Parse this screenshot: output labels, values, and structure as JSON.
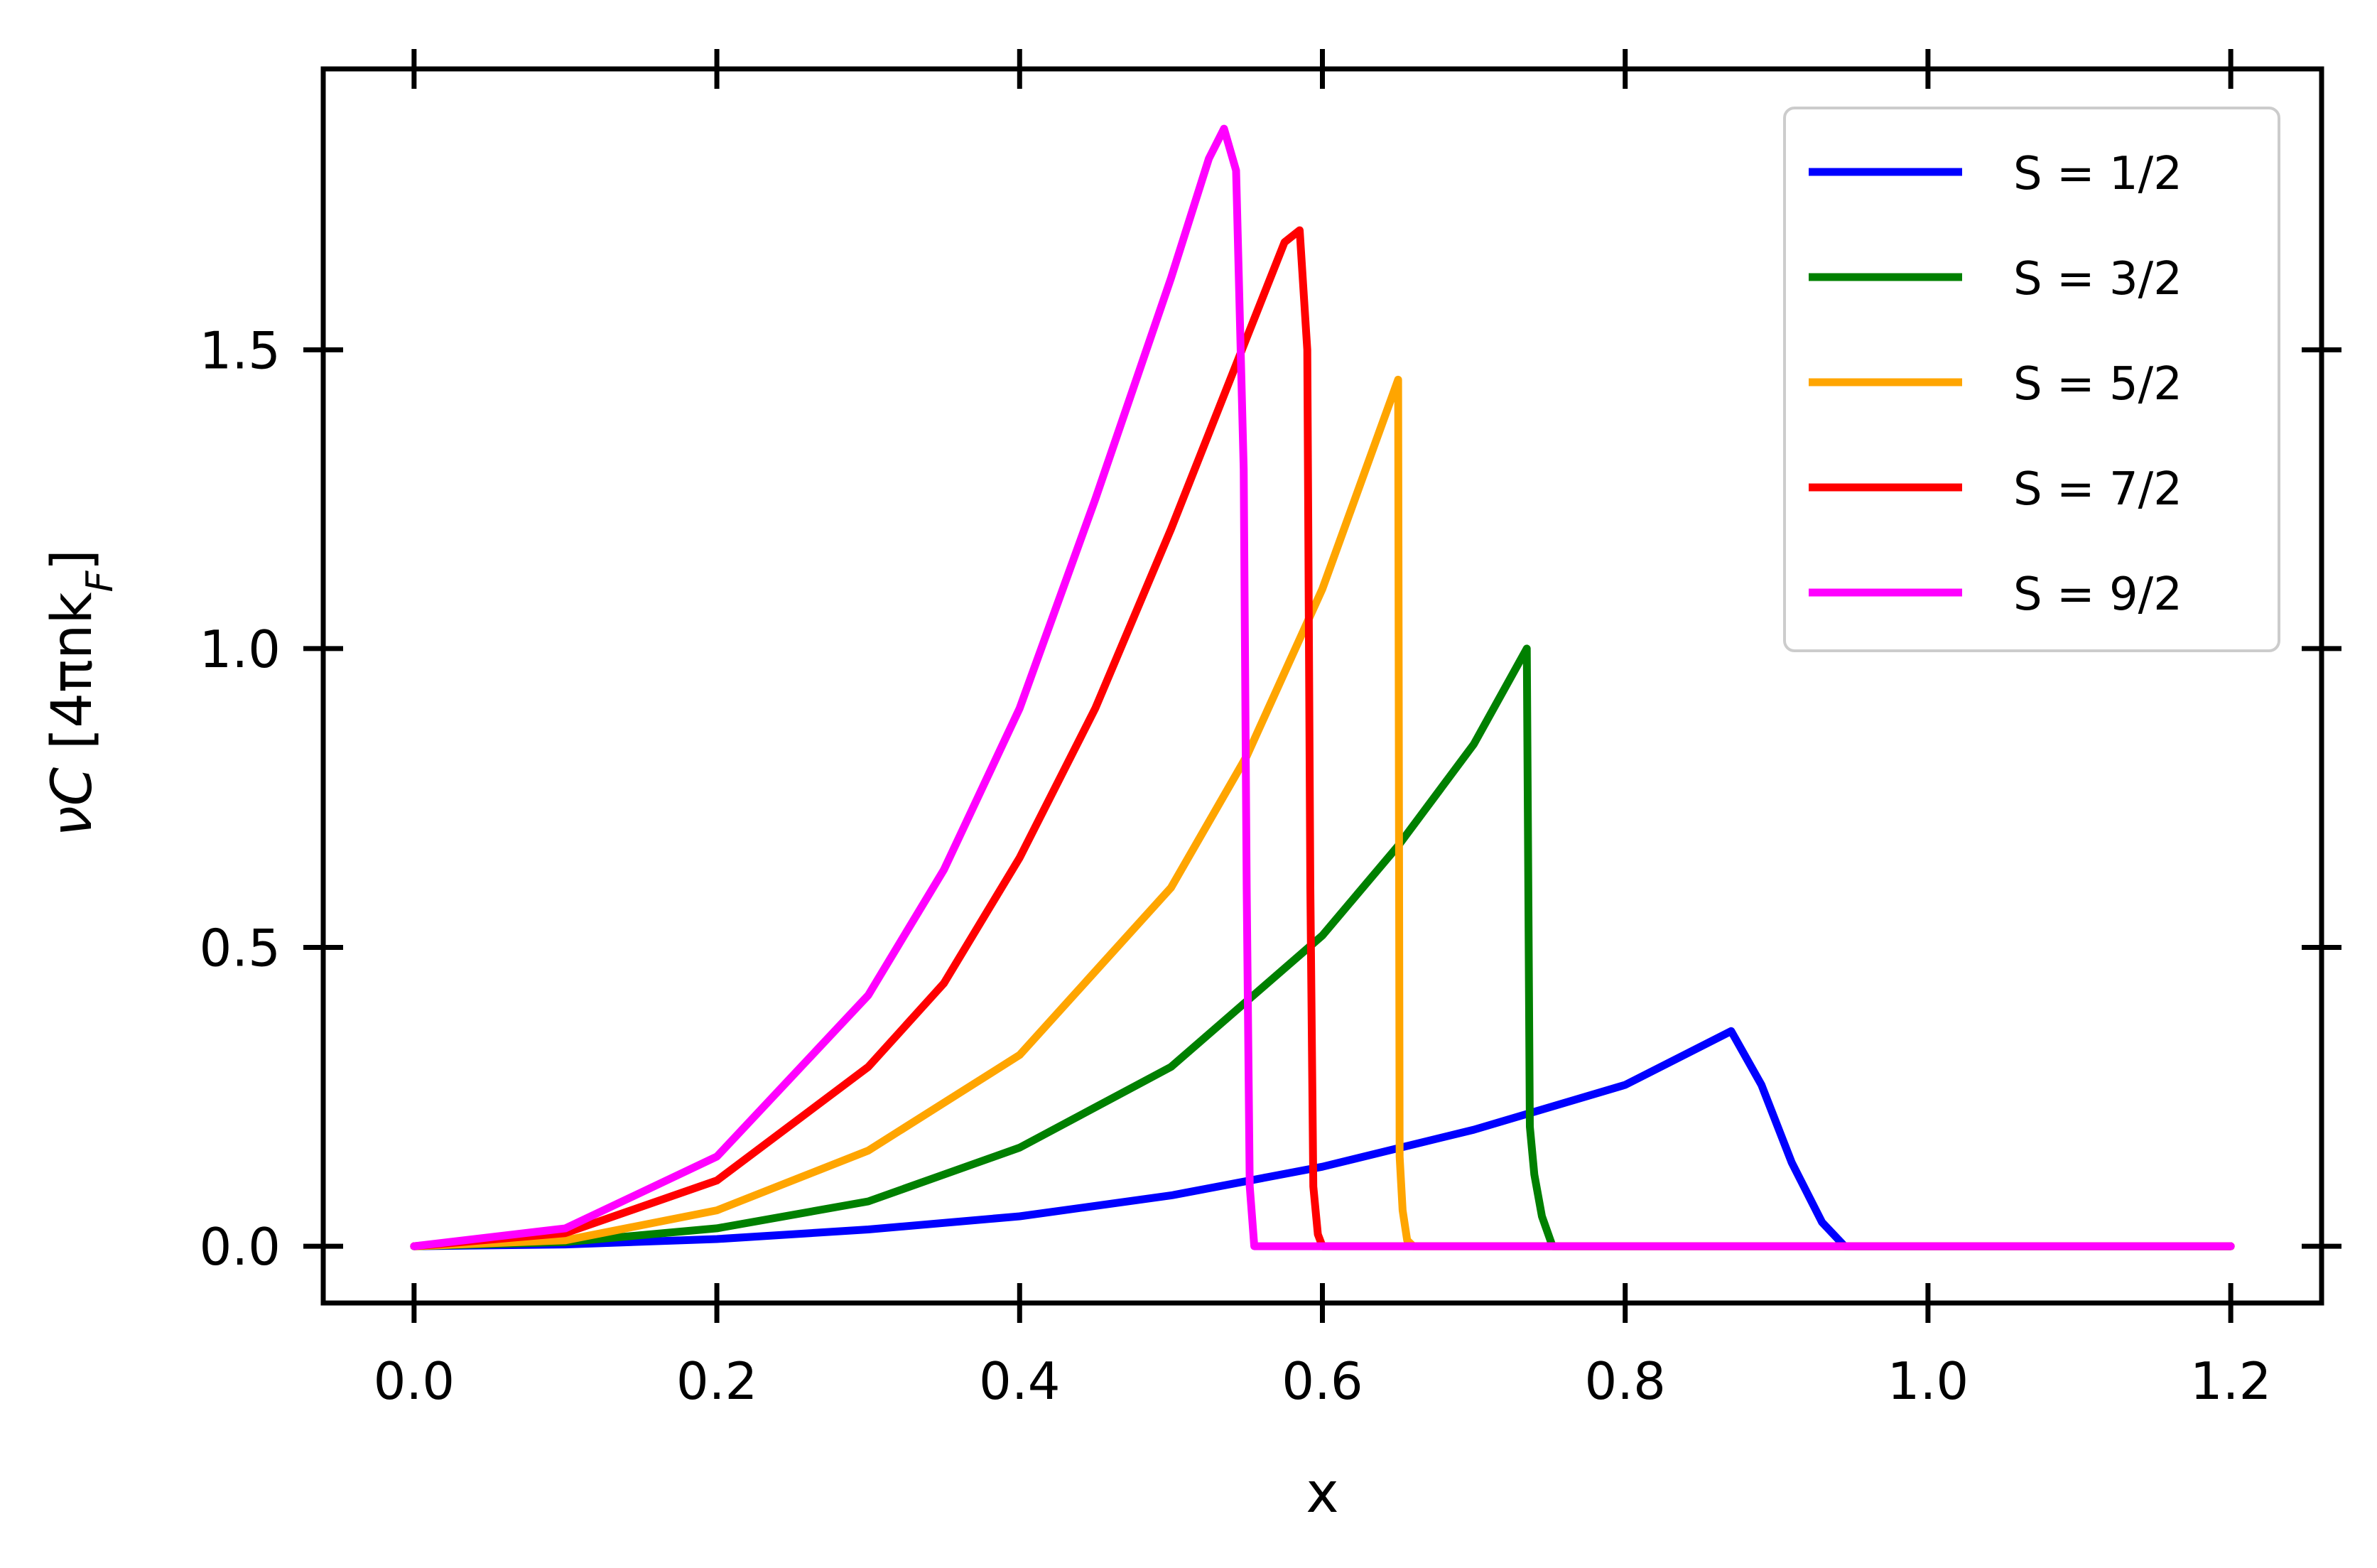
{
  "chart_data": {
    "type": "line",
    "xlabel": "x",
    "ylabel": "νC   [4πnk_F]",
    "ylabel_parts": {
      "main": "νC",
      "bracket_open": "[4πnk",
      "subscript": "F",
      "bracket_close": "]"
    },
    "xlim": [
      -0.06,
      1.26
    ],
    "ylim": [
      -0.095,
      1.97
    ],
    "xticks": [
      0.0,
      0.2,
      0.4,
      0.6,
      0.8,
      1.0,
      1.2
    ],
    "xtick_labels": [
      "0.0",
      "0.2",
      "0.4",
      "0.6",
      "0.8",
      "1.0",
      "1.2"
    ],
    "yticks": [
      0.0,
      0.5,
      1.0,
      1.5
    ],
    "ytick_labels": [
      "0.0",
      "0.5",
      "1.0",
      "1.5"
    ],
    "grid": false,
    "legend_position": "top-right",
    "series": [
      {
        "name": "S = 1/2",
        "color": "#0000ff",
        "x": [
          0.0,
          0.1,
          0.2,
          0.3,
          0.4,
          0.5,
          0.6,
          0.7,
          0.8,
          0.87,
          0.89,
          0.91,
          0.93,
          0.945,
          1.2
        ],
        "y": [
          0.0,
          0.003,
          0.012,
          0.028,
          0.05,
          0.085,
          0.133,
          0.195,
          0.27,
          0.36,
          0.27,
          0.14,
          0.04,
          0.0,
          0.0
        ]
      },
      {
        "name": "S = 3/2",
        "color": "#008000",
        "x": [
          0.0,
          0.1,
          0.2,
          0.3,
          0.4,
          0.5,
          0.6,
          0.65,
          0.7,
          0.735,
          0.737,
          0.74,
          0.745,
          0.752,
          1.2
        ],
        "y": [
          0.0,
          0.007,
          0.03,
          0.075,
          0.165,
          0.3,
          0.52,
          0.67,
          0.84,
          1.0,
          0.2,
          0.12,
          0.05,
          0.0,
          0.0
        ]
      },
      {
        "name": "S = 5/2",
        "color": "#ffa500",
        "x": [
          0.0,
          0.1,
          0.2,
          0.3,
          0.4,
          0.5,
          0.55,
          0.6,
          0.65,
          0.651,
          0.653,
          0.656,
          0.66,
          1.2
        ],
        "y": [
          0.0,
          0.01,
          0.06,
          0.16,
          0.32,
          0.6,
          0.82,
          1.1,
          1.45,
          0.15,
          0.06,
          0.01,
          0.0,
          0.0
        ]
      },
      {
        "name": "S = 7/2",
        "color": "#ff0000",
        "x": [
          0.0,
          0.1,
          0.2,
          0.3,
          0.35,
          0.4,
          0.45,
          0.5,
          0.55,
          0.575,
          0.585,
          0.59,
          0.592,
          0.594,
          0.597,
          0.6,
          1.2
        ],
        "y": [
          0.0,
          0.022,
          0.11,
          0.3,
          0.44,
          0.65,
          0.9,
          1.2,
          1.52,
          1.68,
          1.7,
          1.5,
          0.6,
          0.1,
          0.02,
          0.0,
          0.0
        ]
      },
      {
        "name": "S = 9/2",
        "color": "#ff00ff",
        "x": [
          0.0,
          0.1,
          0.2,
          0.3,
          0.35,
          0.4,
          0.45,
          0.5,
          0.525,
          0.535,
          0.543,
          0.548,
          0.55,
          0.552,
          0.555,
          1.2
        ],
        "y": [
          0.0,
          0.03,
          0.15,
          0.42,
          0.63,
          0.9,
          1.25,
          1.62,
          1.82,
          1.87,
          1.8,
          1.3,
          0.6,
          0.1,
          0.0,
          0.0
        ]
      }
    ]
  }
}
